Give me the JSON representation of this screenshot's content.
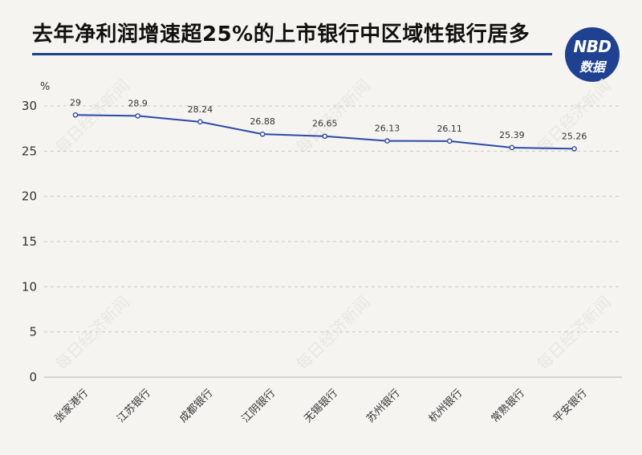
{
  "header": {
    "title": "去年净利润增速超25%的上市银行中区域性银行居多",
    "logo_top": "NBD",
    "logo_bottom": "数据",
    "rule_color": "#1d3f8f",
    "logo_color": "#1e4192"
  },
  "watermark": "每日经济新闻",
  "chart_data": {
    "type": "line",
    "title": "去年净利润增速超25%的上市银行中区域性银行居多",
    "ylabel": "%",
    "xlabel": "",
    "ylim": [
      0,
      30
    ],
    "yticks": [
      0,
      5,
      10,
      15,
      20,
      25,
      30
    ],
    "grid": true,
    "legend": "none",
    "line_color": "#2c4aa6",
    "categories": [
      "张家港行",
      "江苏银行",
      "成都银行",
      "江阴银行",
      "无锡银行",
      "苏州银行",
      "杭州银行",
      "常熟银行",
      "平安银行"
    ],
    "series": [
      {
        "values": [
          29,
          28.9,
          28.24,
          26.88,
          26.65,
          26.13,
          26.11,
          25.39,
          25.26
        ],
        "labels": [
          "29",
          "28.9",
          "28.24",
          "26.88",
          "26.65",
          "26.13",
          "26.11",
          "25.39",
          "25.26"
        ]
      }
    ]
  }
}
